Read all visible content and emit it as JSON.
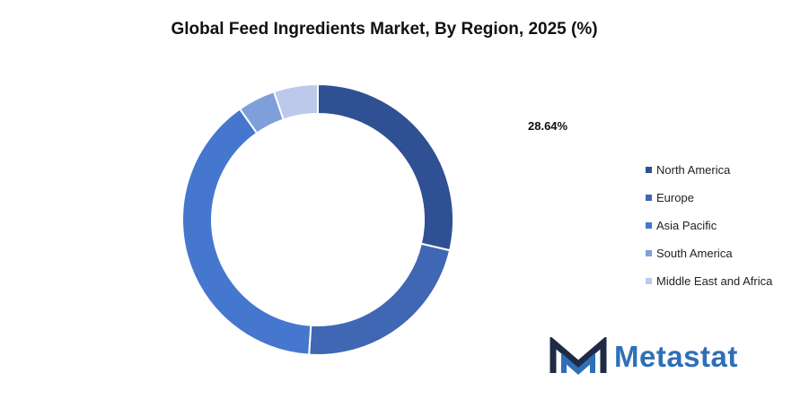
{
  "chart_data": {
    "type": "pie",
    "variant": "donut",
    "title": "Global Feed Ingredients Market, By Region, 2025 (%)",
    "categories": [
      "North America",
      "Europe",
      "Asia Pacific",
      "South America",
      "Middle East and Africa"
    ],
    "values": [
      28.64,
      22.4,
      39.2,
      4.5,
      5.26
    ],
    "colors": [
      "#2f5193",
      "#3f67b3",
      "#4677cf",
      "#7f9fdb",
      "#bcc9ea"
    ],
    "data_labels": [
      {
        "category": "North America",
        "text": "28.64%"
      }
    ],
    "legend_position": "right"
  },
  "branding": {
    "logo_text": "Metastat",
    "logo_icon": "metastat-m-icon"
  }
}
